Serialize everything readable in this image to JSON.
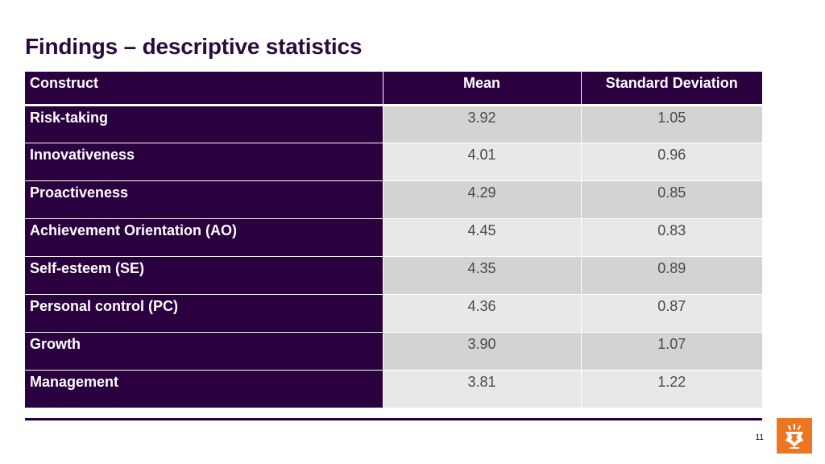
{
  "slide": {
    "title": "Findings – descriptive statistics",
    "page_number": "11"
  },
  "table": {
    "headers": [
      "Construct",
      "Mean",
      "Standard Deviation"
    ],
    "rows": [
      {
        "construct": "Risk-taking",
        "mean": "3.92",
        "sd": "1.05"
      },
      {
        "construct": "Innovativeness",
        "mean": "4.01",
        "sd": "0.96"
      },
      {
        "construct": "Proactiveness",
        "mean": "4.29",
        "sd": "0.85"
      },
      {
        "construct": "Achievement Orientation (AO)",
        "mean": "4.45",
        "sd": "0.83"
      },
      {
        "construct": "Self-esteem (SE)",
        "mean": "4.35",
        "sd": "0.89"
      },
      {
        "construct": "Personal control (PC)",
        "mean": "4.36",
        "sd": "0.87"
      },
      {
        "construct": "Growth",
        "mean": "3.90",
        "sd": "1.07"
      },
      {
        "construct": "Management",
        "mean": "3.81",
        "sd": "1.22"
      }
    ]
  },
  "colors": {
    "header_bg": "#2a003f",
    "title_text": "#2b0a3d",
    "row_odd": "#d3d3d3",
    "row_even": "#e8e8e8",
    "logo_bg": "#ee7623"
  },
  "logo": {
    "icon": "university-crest-icon"
  }
}
